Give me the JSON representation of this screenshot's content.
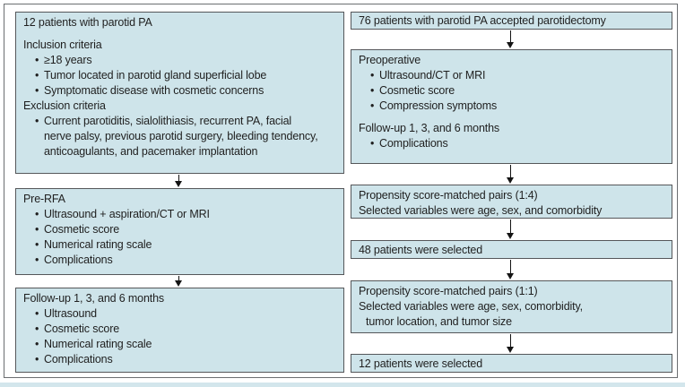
{
  "colors": {
    "box_fill": "#cee4ea",
    "box_border": "#55575a",
    "frame_border": "#6b6e71",
    "text": "#1f1f1f",
    "arrow": "#141414",
    "bottom_strip": "#d3e6ec"
  },
  "columns": {
    "left": {
      "boxes": [
        {
          "name": "rfa-eligibility",
          "lines": [
            {
              "t": "12 patients with parotid PA",
              "s": "h"
            },
            {
              "t": "Inclusion criteria",
              "s": "hg"
            },
            {
              "t": "≥18 years",
              "s": "b"
            },
            {
              "t": "Tumor located in parotid gland superficial lobe",
              "s": "b"
            },
            {
              "t": "Symptomatic disease with cosmetic concerns",
              "s": "b"
            },
            {
              "t": "Exclusion criteria",
              "s": "h"
            },
            {
              "t": "Current parotiditis, sialolithiasis, recurrent PA, facial",
              "s": "b"
            },
            {
              "t": "nerve palsy, previous parotid surgery, bleeding tendency,",
              "s": "bc"
            },
            {
              "t": "anticoagulants, and pacemaker implantation",
              "s": "bc"
            }
          ]
        },
        {
          "name": "pre-rfa-assessment",
          "lines": [
            {
              "t": "Pre-RFA",
              "s": "h"
            },
            {
              "t": "Ultrasound + aspiration/CT or MRI",
              "s": "b"
            },
            {
              "t": "Cosmetic score",
              "s": "b"
            },
            {
              "t": "Numerical rating scale",
              "s": "b"
            },
            {
              "t": "Complications",
              "s": "b"
            }
          ]
        },
        {
          "name": "rfa-follow-up",
          "lines": [
            {
              "t": "Follow-up 1, 3, and 6 months",
              "s": "h"
            },
            {
              "t": "Ultrasound",
              "s": "b"
            },
            {
              "t": "Cosmetic score",
              "s": "b"
            },
            {
              "t": "Numerical rating scale",
              "s": "b"
            },
            {
              "t": "Complications",
              "s": "b"
            }
          ]
        }
      ]
    },
    "right": {
      "boxes": [
        {
          "name": "parotidectomy-cohort",
          "lines": [
            {
              "t": "76 patients with parotid PA accepted parotidectomy",
              "s": "h"
            }
          ]
        },
        {
          "name": "preoperative-assessment",
          "lines": [
            {
              "t": "Preoperative",
              "s": "h"
            },
            {
              "t": "Ultrasound/CT or MRI",
              "s": "b"
            },
            {
              "t": "Cosmetic score",
              "s": "b"
            },
            {
              "t": "Compression symptoms",
              "s": "b"
            },
            {
              "t": "Follow-up 1, 3, and 6 months",
              "s": "hg"
            },
            {
              "t": "Complications",
              "s": "b"
            }
          ]
        },
        {
          "name": "propensity-match-1-4",
          "lines": [
            {
              "t": "Propensity score-matched pairs (1:4)",
              "s": "h"
            },
            {
              "t": "Selected variables were age, sex, and comorbidity",
              "s": "h"
            }
          ]
        },
        {
          "name": "48-patients-selected",
          "lines": [
            {
              "t": "48 patients were selected",
              "s": "h"
            }
          ]
        },
        {
          "name": "propensity-match-1-1",
          "lines": [
            {
              "t": "Propensity score-matched pairs (1:1)",
              "s": "h"
            },
            {
              "t": "Selected variables were age, sex, comorbidity,",
              "s": "h"
            },
            {
              "t": "tumor location, and tumor size",
              "s": "hi"
            }
          ]
        },
        {
          "name": "12-patients-selected",
          "lines": [
            {
              "t": "12 patients were selected",
              "s": "h"
            }
          ]
        }
      ]
    }
  }
}
